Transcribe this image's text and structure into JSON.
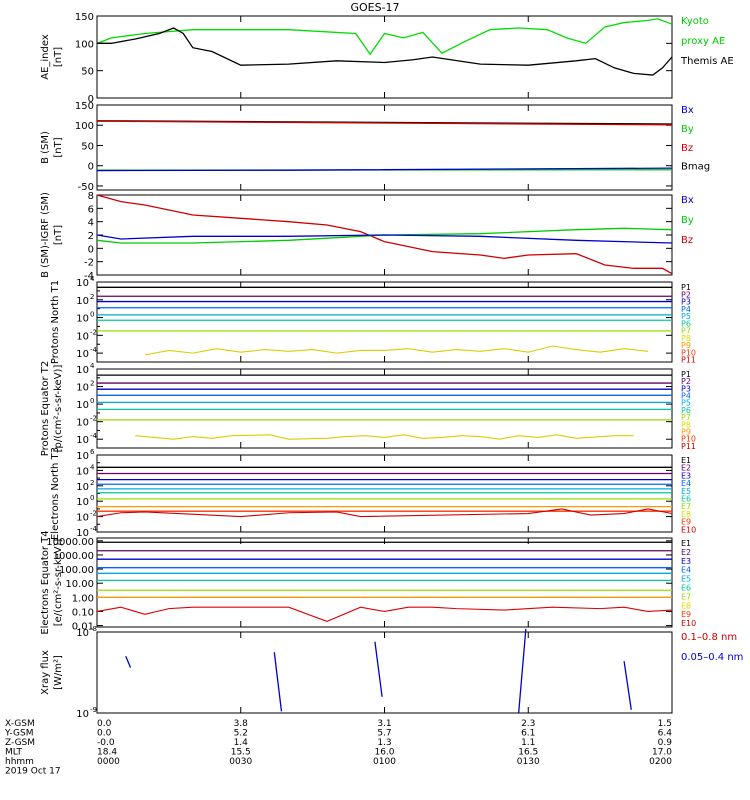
{
  "title": "GOES-17",
  "chart_data": [
    {
      "type": "line",
      "ylabel": "AE_index [nT]",
      "ylim": [
        0,
        150
      ],
      "yticks": [
        "0",
        "50",
        "100",
        "150"
      ],
      "legend": [
        {
          "label": "Kyoto",
          "color": "#00cc00"
        },
        {
          "label": "proxy AE",
          "color": "#00cc00"
        },
        {
          "label": "Themis AE",
          "color": "#000000"
        }
      ],
      "series": [
        {
          "name": "Kyoto proxy AE",
          "color": "#00dd00",
          "x": [
            0,
            3,
            10,
            20,
            40,
            54,
            57,
            60,
            64,
            68,
            72,
            76,
            82,
            88,
            94,
            98,
            102,
            106,
            110,
            115,
            117,
            120
          ],
          "y": [
            100,
            110,
            118,
            125,
            125,
            118,
            80,
            118,
            110,
            120,
            82,
            100,
            125,
            128,
            125,
            110,
            100,
            130,
            138,
            142,
            145,
            135
          ]
        },
        {
          "name": "Themis AE",
          "color": "#000000",
          "x": [
            0,
            3,
            8,
            13,
            16,
            18,
            20,
            24,
            30,
            40,
            50,
            60,
            66,
            70,
            80,
            90,
            100,
            104,
            108,
            112,
            116,
            118,
            120
          ],
          "y": [
            100,
            100,
            108,
            118,
            128,
            118,
            92,
            85,
            60,
            62,
            68,
            65,
            70,
            75,
            62,
            60,
            68,
            72,
            55,
            45,
            42,
            55,
            75
          ]
        }
      ]
    },
    {
      "type": "line",
      "ylabel": "B (SM) [nT]",
      "ylim": [
        -60,
        150
      ],
      "yticks": [
        "-50",
        "0",
        "50",
        "100",
        "150"
      ],
      "legend": [
        {
          "label": "Bx",
          "color": "#0000cc"
        },
        {
          "label": "By",
          "color": "#00cc00"
        },
        {
          "label": "Bz",
          "color": "#cc0000"
        },
        {
          "label": "Bmag",
          "color": "#000000"
        }
      ],
      "series": [
        {
          "name": "Bmag",
          "color": "#000000",
          "x": [
            0,
            120
          ],
          "y": [
            111,
            103
          ]
        },
        {
          "name": "Bz",
          "color": "#cc0000",
          "x": [
            0,
            120
          ],
          "y": [
            110,
            101
          ]
        },
        {
          "name": "By",
          "color": "#00cc00",
          "x": [
            0,
            120
          ],
          "y": [
            -11,
            -10
          ]
        },
        {
          "name": "Bx",
          "color": "#0000cc",
          "x": [
            0,
            40,
            120
          ],
          "y": [
            -12,
            -11,
            -6
          ]
        }
      ]
    },
    {
      "type": "line",
      "ylabel": "B (SM)-IGRF (SM) [nT]",
      "ylim": [
        -4,
        8
      ],
      "yticks": [
        "-4",
        "-2",
        "0",
        "2",
        "4",
        "6",
        "8"
      ],
      "legend": [
        {
          "label": "Bx",
          "color": "#0000cc"
        },
        {
          "label": "By",
          "color": "#00cc00"
        },
        {
          "label": "Bz",
          "color": "#cc0000"
        }
      ],
      "series": [
        {
          "name": "Bz",
          "color": "#cc0000",
          "x": [
            0,
            5,
            10,
            20,
            30,
            40,
            48,
            55,
            60,
            70,
            80,
            85,
            90,
            100,
            106,
            112,
            118,
            120
          ],
          "y": [
            8,
            7,
            6.5,
            5,
            4.5,
            4,
            3.5,
            2.5,
            1,
            -0.5,
            -1,
            -1.5,
            -1,
            -0.8,
            -2.5,
            -3,
            -3,
            -3.8
          ]
        },
        {
          "name": "By",
          "color": "#00cc00",
          "x": [
            0,
            5,
            20,
            40,
            50,
            60,
            80,
            100,
            110,
            120
          ],
          "y": [
            1.2,
            0.8,
            0.8,
            1.2,
            1.6,
            2,
            2.2,
            2.8,
            3,
            2.8
          ]
        },
        {
          "name": "Bx",
          "color": "#0000cc",
          "x": [
            0,
            5,
            20,
            40,
            60,
            80,
            100,
            120
          ],
          "y": [
            2,
            1.4,
            1.8,
            1.8,
            2.0,
            1.8,
            1.2,
            0.8
          ]
        }
      ]
    },
    {
      "type": "line",
      "ylabel": "Protons North T1",
      "scale": "log",
      "ylim_exp": [
        -5,
        4
      ],
      "ytick_exps": [
        -4,
        -2,
        0,
        2,
        4
      ],
      "legend": [
        {
          "label": "P1",
          "color": "#000000"
        },
        {
          "label": "P2",
          "color": "#660066"
        },
        {
          "label": "P3",
          "color": "#0000cc"
        },
        {
          "label": "P4",
          "color": "#0066ff"
        },
        {
          "label": "P5",
          "color": "#00aadd"
        },
        {
          "label": "P6",
          "color": "#00cc99"
        },
        {
          "label": "P7",
          "color": "#99dd00"
        },
        {
          "label": "P8",
          "color": "#dddd00"
        },
        {
          "label": "P9",
          "color": "#ff9900"
        },
        {
          "label": "P10",
          "color": "#ff3300"
        },
        {
          "label": "P11",
          "color": "#cc0000"
        }
      ],
      "levels": [
        {
          "color": "#000000",
          "exp": 3.4
        },
        {
          "color": "#660066",
          "exp": 2.4
        },
        {
          "color": "#0000cc",
          "exp": 1.8
        },
        {
          "color": "#0066ff",
          "exp": 1.1
        },
        {
          "color": "#00aadd",
          "exp": 0.3
        },
        {
          "color": "#00cc99",
          "exp": -0.3
        },
        {
          "color": "#99dd00",
          "exp": -1.5
        }
      ],
      "noisy": {
        "color": "#ddcc00",
        "x": [
          10,
          15,
          20,
          25,
          30,
          35,
          40,
          45,
          50,
          55,
          60,
          65,
          70,
          75,
          80,
          85,
          90,
          95,
          100,
          105,
          110,
          115
        ],
        "exp": [
          -4.2,
          -3.7,
          -4.0,
          -3.5,
          -3.9,
          -3.6,
          -3.8,
          -3.6,
          -4.0,
          -3.7,
          -3.7,
          -3.5,
          -3.9,
          -3.6,
          -3.8,
          -3.5,
          -3.9,
          -3.2,
          -3.6,
          -3.9,
          -3.5,
          -3.8
        ]
      }
    },
    {
      "type": "line",
      "ylabel": "Protons Equator T2 [p/(cm²-s-sr-keV)]",
      "scale": "log",
      "ylim_exp": [
        -5,
        4
      ],
      "ytick_exps": [
        -4,
        -2,
        0,
        2,
        4
      ],
      "legend": [
        {
          "label": "P1",
          "color": "#000000"
        },
        {
          "label": "P2",
          "color": "#660066"
        },
        {
          "label": "P3",
          "color": "#0000cc"
        },
        {
          "label": "P4",
          "color": "#0066ff"
        },
        {
          "label": "P5",
          "color": "#00aadd"
        },
        {
          "label": "P6",
          "color": "#00cc99"
        },
        {
          "label": "P7",
          "color": "#99dd00"
        },
        {
          "label": "P8",
          "color": "#dddd00"
        },
        {
          "label": "P9",
          "color": "#ff9900"
        },
        {
          "label": "P10",
          "color": "#ff3300"
        },
        {
          "label": "P11",
          "color": "#cc0000"
        }
      ],
      "levels": [
        {
          "color": "#000000",
          "exp": 3.3
        },
        {
          "color": "#660066",
          "exp": 2.4
        },
        {
          "color": "#0000cc",
          "exp": 1.7
        },
        {
          "color": "#0066ff",
          "exp": 1.0
        },
        {
          "color": "#00aadd",
          "exp": 0.2
        },
        {
          "color": "#00cc99",
          "exp": -0.6
        },
        {
          "color": "#99dd00",
          "exp": -1.8
        }
      ],
      "noisy": {
        "color": "#ddcc00",
        "x": [
          8,
          12,
          16,
          20,
          24,
          28,
          36,
          40,
          48,
          52,
          56,
          60,
          64,
          68,
          72,
          76,
          80,
          84,
          88,
          92,
          96,
          100,
          108,
          112
        ],
        "exp": [
          -3.6,
          -3.8,
          -4.0,
          -3.7,
          -3.9,
          -3.6,
          -3.5,
          -4.0,
          -3.9,
          -3.7,
          -3.6,
          -3.8,
          -3.5,
          -3.9,
          -3.8,
          -3.6,
          -3.7,
          -4.0,
          -3.6,
          -3.8,
          -3.5,
          -3.9,
          -3.6,
          -3.6
        ]
      }
    },
    {
      "type": "line",
      "ylabel": "Electrons North T3",
      "scale": "log",
      "ylim_exp": [
        -4,
        6
      ],
      "ytick_exps": [
        -4,
        -2,
        0,
        2,
        4,
        6
      ],
      "legend": [
        {
          "label": "E1",
          "color": "#000000"
        },
        {
          "label": "E2",
          "color": "#660066"
        },
        {
          "label": "E3",
          "color": "#0000cc"
        },
        {
          "label": "E4",
          "color": "#0066ff"
        },
        {
          "label": "E5",
          "color": "#00aadd"
        },
        {
          "label": "E6",
          "color": "#00cc99"
        },
        {
          "label": "E7",
          "color": "#99dd00"
        },
        {
          "label": "E8",
          "color": "#dddd00"
        },
        {
          "label": "E9",
          "color": "#ff3300"
        },
        {
          "label": "E10",
          "color": "#cc0000"
        }
      ],
      "levels": [
        {
          "color": "#000000",
          "exp": 4.4
        },
        {
          "color": "#660066",
          "exp": 3.6
        },
        {
          "color": "#0000cc",
          "exp": 2.8
        },
        {
          "color": "#0066ff",
          "exp": 2.2
        },
        {
          "color": "#00aadd",
          "exp": 1.6
        },
        {
          "color": "#00cc99",
          "exp": 1.1
        },
        {
          "color": "#99dd00",
          "exp": 0.3
        },
        {
          "color": "#ff9900",
          "exp": -0.7
        },
        {
          "color": "#ff3300",
          "exp": -1.3
        }
      ],
      "noisy": {
        "color": "#cc0000",
        "x": [
          0,
          5,
          10,
          30,
          40,
          50,
          55,
          90,
          97,
          103,
          110,
          115,
          120
        ],
        "exp": [
          -2.0,
          -1.5,
          -1.4,
          -2.0,
          -1.5,
          -1.4,
          -2.0,
          -1.6,
          -1.0,
          -1.8,
          -1.6,
          -1.0,
          -1.6
        ]
      }
    },
    {
      "type": "line",
      "ylabel": "Electrons Equator T4 [e/(cm²-s-sr-keV)]",
      "scale": "log",
      "ylim_exp": [
        -2.1,
        4.2
      ],
      "yticks": [
        "0.01",
        "0.10",
        "1.00",
        "10.00",
        "100.00",
        "1000.00",
        "10000.00"
      ],
      "ytick_exps": [
        -2,
        -1,
        0,
        1,
        2,
        3,
        4
      ],
      "legend": [
        {
          "label": "E1",
          "color": "#000000"
        },
        {
          "label": "E2",
          "color": "#660066"
        },
        {
          "label": "E3",
          "color": "#0000cc"
        },
        {
          "label": "E4",
          "color": "#0066ff"
        },
        {
          "label": "E5",
          "color": "#00aadd"
        },
        {
          "label": "E6",
          "color": "#00cc99"
        },
        {
          "label": "E7",
          "color": "#99dd00"
        },
        {
          "label": "E8",
          "color": "#dddd00"
        },
        {
          "label": "E9",
          "color": "#ff3300"
        },
        {
          "label": "E10",
          "color": "#cc0000"
        }
      ],
      "levels": [
        {
          "color": "#000000",
          "exp": 3.9
        },
        {
          "color": "#660066",
          "exp": 3.3
        },
        {
          "color": "#0000cc",
          "exp": 2.7
        },
        {
          "color": "#0066ff",
          "exp": 2.1
        },
        {
          "color": "#00aadd",
          "exp": 1.7
        },
        {
          "color": "#00cc99",
          "exp": 1.2
        },
        {
          "color": "#99dd00",
          "exp": 0.5
        },
        {
          "color": "#ff9900",
          "exp": 0.0
        }
      ],
      "noisy": {
        "color": "#dd0000",
        "x": [
          0,
          5,
          10,
          15,
          20,
          30,
          40,
          48,
          55,
          60,
          65,
          70,
          75,
          85,
          95,
          105,
          110,
          115,
          120
        ],
        "exp": [
          -1.0,
          -0.7,
          -1.2,
          -0.8,
          -0.7,
          -0.7,
          -0.7,
          -1.7,
          -0.7,
          -1.0,
          -0.7,
          -0.7,
          -0.8,
          -0.9,
          -0.7,
          -0.8,
          -0.7,
          -1.0,
          -0.9
        ]
      }
    },
    {
      "type": "line",
      "ylabel": "Xray flux [W/m²]",
      "scale": "log",
      "ylim_exp": [
        -9,
        -8
      ],
      "ytick_exps": [
        -9,
        -8
      ],
      "legend": [
        {
          "label": "0.1–0.8 nm",
          "color": "#cc0000"
        },
        {
          "label": "0.05–0.4 nm",
          "color": "#0000cc"
        }
      ],
      "segments": [
        {
          "color": "#0000cc",
          "x": [
            6,
            7
          ],
          "exp": [
            -8.3,
            -8.44
          ]
        },
        {
          "color": "#0000cc",
          "x": [
            37,
            38.5
          ],
          "exp": [
            -8.25,
            -8.98
          ]
        },
        {
          "color": "#0000cc",
          "x": [
            58,
            59.5
          ],
          "exp": [
            -8.12,
            -8.8
          ]
        },
        {
          "color": "#0000cc",
          "x": [
            88,
            89.5
          ],
          "exp": [
            -9.0,
            -7.96
          ]
        },
        {
          "color": "#0000cc",
          "x": [
            110,
            111.5
          ],
          "exp": [
            -8.36,
            -8.96
          ]
        }
      ]
    }
  ],
  "xaxis": {
    "rows": [
      {
        "label": "X-GSM",
        "values": [
          "0.0",
          "3.8",
          "3.1",
          "2.3",
          "1.5"
        ]
      },
      {
        "label": "Y-GSM",
        "values": [
          "0.0",
          "5.2",
          "5.7",
          "6.1",
          "6.4"
        ]
      },
      {
        "label": "Z-GSM",
        "values": [
          "-0.0",
          "1.4",
          "1.3",
          "1.1",
          "0.9"
        ]
      },
      {
        "label": "MLT",
        "values": [
          "18.4",
          "15.5",
          "16.0",
          "16.5",
          "17.0"
        ]
      },
      {
        "label": "hhmm",
        "values": [
          "0000",
          "0030",
          "0100",
          "0130",
          "0200"
        ]
      }
    ],
    "date": "2019 Oct 17"
  }
}
